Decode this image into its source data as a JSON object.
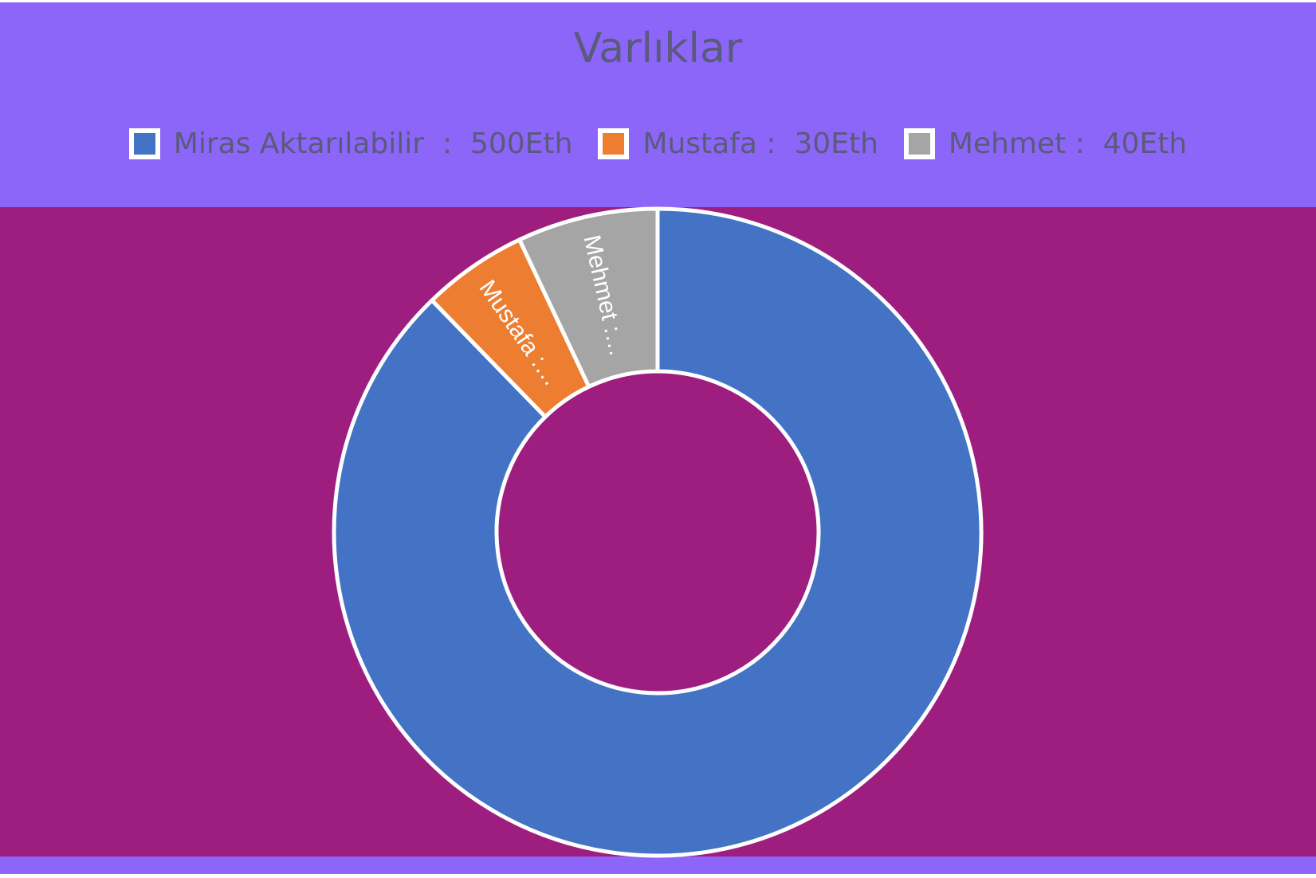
{
  "chart_data": {
    "type": "pie",
    "variant": "donut",
    "title": "Varlıklar",
    "legend_position": "top",
    "categories": [
      "Miras Aktarılabilir",
      "Mustafa",
      "Mehmet"
    ],
    "values": [
      500,
      30,
      40
    ],
    "legend_labels": [
      "Miras Aktarılabilir  :  500Eth",
      "Mustafa :  30Eth",
      "Mehmet :  40Eth"
    ],
    "slice_labels": [
      "",
      "Mustafa :…",
      "Mehmet :…"
    ],
    "colors": [
      "#4472c4",
      "#ed7d31",
      "#a5a5a5"
    ],
    "plot_background": "#9e1e80",
    "chart_background": "#8c66f8"
  }
}
